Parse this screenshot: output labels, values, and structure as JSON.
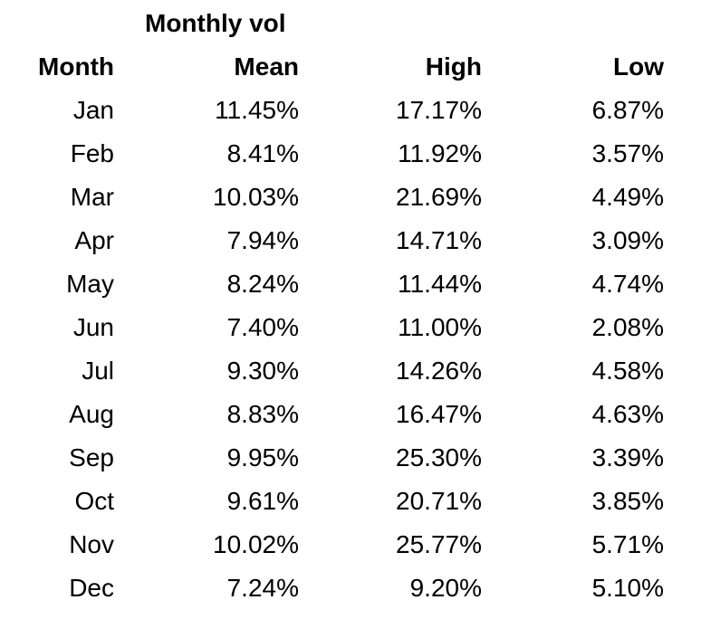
{
  "title": "Monthly vol",
  "columns": {
    "month": "Month",
    "mean": "Mean",
    "high": "High",
    "low": "Low"
  },
  "rows": [
    {
      "month": "Jan",
      "mean": "11.45%",
      "high": "17.17%",
      "low": "6.87%"
    },
    {
      "month": "Feb",
      "mean": "8.41%",
      "high": "11.92%",
      "low": "3.57%"
    },
    {
      "month": "Mar",
      "mean": "10.03%",
      "high": "21.69%",
      "low": "4.49%"
    },
    {
      "month": "Apr",
      "mean": "7.94%",
      "high": "14.71%",
      "low": "3.09%"
    },
    {
      "month": "May",
      "mean": "8.24%",
      "high": "11.44%",
      "low": "4.74%"
    },
    {
      "month": "Jun",
      "mean": "7.40%",
      "high": "11.00%",
      "low": "2.08%"
    },
    {
      "month": "Jul",
      "mean": "9.30%",
      "high": "14.26%",
      "low": "4.58%"
    },
    {
      "month": "Aug",
      "mean": "8.83%",
      "high": "16.47%",
      "low": "4.63%"
    },
    {
      "month": "Sep",
      "mean": "9.95%",
      "high": "25.30%",
      "low": "3.39%"
    },
    {
      "month": "Oct",
      "mean": "9.61%",
      "high": "20.71%",
      "low": "3.85%"
    },
    {
      "month": "Nov",
      "mean": "10.02%",
      "high": "25.77%",
      "low": "5.71%"
    },
    {
      "month": "Dec",
      "mean": "7.24%",
      "high": "9.20%",
      "low": "5.10%"
    }
  ],
  "colors": {
    "text": "#000000",
    "background": "#ffffff"
  },
  "chart_data": {
    "type": "table",
    "title": "Monthly vol",
    "columns": [
      "Month",
      "Mean",
      "High",
      "Low"
    ],
    "units": "%",
    "categories": [
      "Jan",
      "Feb",
      "Mar",
      "Apr",
      "May",
      "Jun",
      "Jul",
      "Aug",
      "Sep",
      "Oct",
      "Nov",
      "Dec"
    ],
    "series": [
      {
        "name": "Mean",
        "values": [
          11.45,
          8.41,
          10.03,
          7.94,
          8.24,
          7.4,
          9.3,
          8.83,
          9.95,
          9.61,
          10.02,
          7.24
        ]
      },
      {
        "name": "High",
        "values": [
          17.17,
          11.92,
          21.69,
          14.71,
          11.44,
          11.0,
          14.26,
          16.47,
          25.3,
          20.71,
          25.77,
          9.2
        ]
      },
      {
        "name": "Low",
        "values": [
          6.87,
          3.57,
          4.49,
          3.09,
          4.74,
          2.08,
          4.58,
          4.63,
          3.39,
          3.85,
          5.71,
          5.1
        ]
      }
    ]
  }
}
